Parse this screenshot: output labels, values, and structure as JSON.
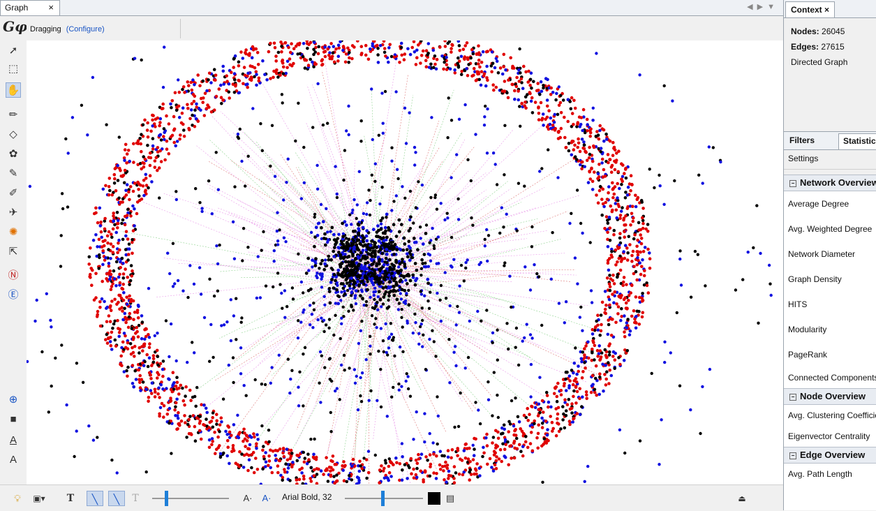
{
  "graph_tab": {
    "title": "Graph",
    "close": "×"
  },
  "window_controls": [
    "◀",
    "▶",
    "▼"
  ],
  "toolbar": {
    "mode_label": "Dragging",
    "configure_link": "(Configure)"
  },
  "bottom_bar": {
    "font_label": "Arial Bold, 32"
  },
  "context": {
    "tab_title": "Context",
    "tab_close": "×",
    "nodes_label": "Nodes:",
    "nodes_value": "26045",
    "edges_label": "Edges:",
    "edges_value": "27615",
    "graph_type": "Directed Graph"
  },
  "statistics_panel": {
    "tabs": [
      "Filters",
      "Statistics"
    ],
    "settings_label": "Settings",
    "sections": [
      {
        "title": "Network Overview",
        "items": [
          "Average Degree",
          "Avg. Weighted Degree",
          "Network Diameter",
          "Graph Density",
          "HITS",
          "Modularity",
          "PageRank",
          "Connected Components"
        ]
      },
      {
        "title": "Node Overview",
        "items": [
          "Avg. Clustering Coefficient",
          "Eigenvector Centrality"
        ]
      },
      {
        "title": "Edge Overview",
        "items": [
          "Avg. Path Length"
        ]
      }
    ]
  },
  "graph_colors": {
    "red": "#e00000",
    "blue": "#1010e0",
    "black": "#000000",
    "edge_pink": "#e070e0",
    "edge_green": "#60c060",
    "edge_red": "#d04040"
  }
}
